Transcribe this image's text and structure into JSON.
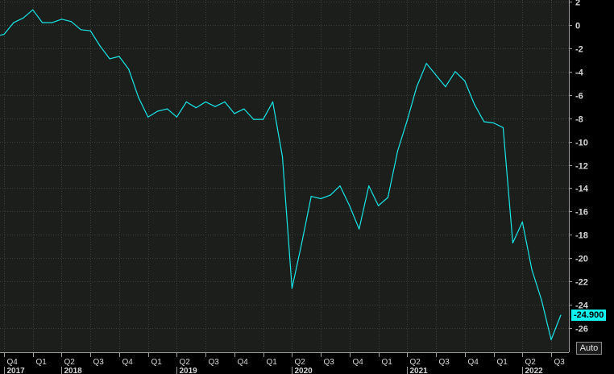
{
  "chart_data": {
    "type": "line",
    "ylim": [
      -28,
      2
    ],
    "yticks": [
      2,
      0,
      -2,
      -4,
      -6,
      -8,
      -10,
      -12,
      -14,
      -16,
      -18,
      -20,
      -22,
      -24,
      -26
    ],
    "x_quarter_labels": [
      {
        "label": "Q4",
        "t": 2017.75
      },
      {
        "label": "Q1",
        "t": 2018.0
      },
      {
        "label": "Q2",
        "t": 2018.25
      },
      {
        "label": "Q3",
        "t": 2018.5
      },
      {
        "label": "Q4",
        "t": 2018.75
      },
      {
        "label": "Q1",
        "t": 2019.0
      },
      {
        "label": "Q2",
        "t": 2019.25
      },
      {
        "label": "Q3",
        "t": 2019.5
      },
      {
        "label": "Q4",
        "t": 2019.75
      },
      {
        "label": "Q1",
        "t": 2020.0
      },
      {
        "label": "Q2",
        "t": 2020.25
      },
      {
        "label": "Q3",
        "t": 2020.5
      },
      {
        "label": "Q4",
        "t": 2020.75
      },
      {
        "label": "Q1",
        "t": 2021.0
      },
      {
        "label": "Q2",
        "t": 2021.25
      },
      {
        "label": "Q3",
        "t": 2021.5
      },
      {
        "label": "Q4",
        "t": 2021.75
      },
      {
        "label": "Q1",
        "t": 2022.0
      },
      {
        "label": "Q2",
        "t": 2022.25
      },
      {
        "label": "Q3",
        "t": 2022.5
      }
    ],
    "x_year_labels": [
      {
        "label": "2017",
        "t": 2017.75
      },
      {
        "label": "2018",
        "t": 2018.25
      },
      {
        "label": "2019",
        "t": 2019.25
      },
      {
        "label": "2020",
        "t": 2020.25
      },
      {
        "label": "2021",
        "t": 2021.25
      },
      {
        "label": "2022",
        "t": 2022.25
      }
    ],
    "series": [
      {
        "color": "#19e6e6",
        "points": [
          [
            2017.583,
            -1.2
          ],
          [
            2017.667,
            -1.0
          ],
          [
            2017.75,
            -0.8
          ],
          [
            2017.833,
            0.2
          ],
          [
            2017.917,
            0.6
          ],
          [
            2018.0,
            1.3
          ],
          [
            2018.083,
            0.2
          ],
          [
            2018.167,
            0.2
          ],
          [
            2018.25,
            0.5
          ],
          [
            2018.333,
            0.3
          ],
          [
            2018.417,
            -0.4
          ],
          [
            2018.5,
            -0.5
          ],
          [
            2018.583,
            -1.8
          ],
          [
            2018.667,
            -2.9
          ],
          [
            2018.75,
            -2.7
          ],
          [
            2018.833,
            -3.8
          ],
          [
            2018.917,
            -6.2
          ],
          [
            2019.0,
            -7.9
          ],
          [
            2019.083,
            -7.4
          ],
          [
            2019.167,
            -7.2
          ],
          [
            2019.25,
            -7.9
          ],
          [
            2019.333,
            -6.6
          ],
          [
            2019.417,
            -7.1
          ],
          [
            2019.5,
            -6.6
          ],
          [
            2019.583,
            -7.0
          ],
          [
            2019.667,
            -6.6
          ],
          [
            2019.75,
            -7.6
          ],
          [
            2019.833,
            -7.2
          ],
          [
            2019.917,
            -8.1
          ],
          [
            2020.0,
            -8.1
          ],
          [
            2020.083,
            -6.6
          ],
          [
            2020.167,
            -11.3
          ],
          [
            2020.25,
            -22.6
          ],
          [
            2020.333,
            -18.8
          ],
          [
            2020.417,
            -14.7
          ],
          [
            2020.5,
            -14.9
          ],
          [
            2020.583,
            -14.6
          ],
          [
            2020.667,
            -13.8
          ],
          [
            2020.75,
            -15.5
          ],
          [
            2020.833,
            -17.5
          ],
          [
            2020.917,
            -13.8
          ],
          [
            2021.0,
            -15.5
          ],
          [
            2021.083,
            -14.8
          ],
          [
            2021.167,
            -10.8
          ],
          [
            2021.25,
            -8.2
          ],
          [
            2021.333,
            -5.3
          ],
          [
            2021.417,
            -3.3
          ],
          [
            2021.5,
            -4.3
          ],
          [
            2021.583,
            -5.3
          ],
          [
            2021.667,
            -4.0
          ],
          [
            2021.75,
            -4.8
          ],
          [
            2021.833,
            -6.8
          ],
          [
            2021.917,
            -8.3
          ],
          [
            2022.0,
            -8.4
          ],
          [
            2022.083,
            -8.8
          ],
          [
            2022.167,
            -18.7
          ],
          [
            2022.25,
            -16.9
          ],
          [
            2022.333,
            -21.0
          ],
          [
            2022.417,
            -23.6
          ],
          [
            2022.5,
            -27.0
          ],
          [
            2022.583,
            -24.9
          ]
        ]
      }
    ],
    "last_value_label": "-24.900",
    "grid": true,
    "background_color": "#1c1e1c",
    "axis_bg_color": "#000000",
    "line_color": "#19e6e6"
  },
  "ui": {
    "auto_button": "Auto"
  }
}
